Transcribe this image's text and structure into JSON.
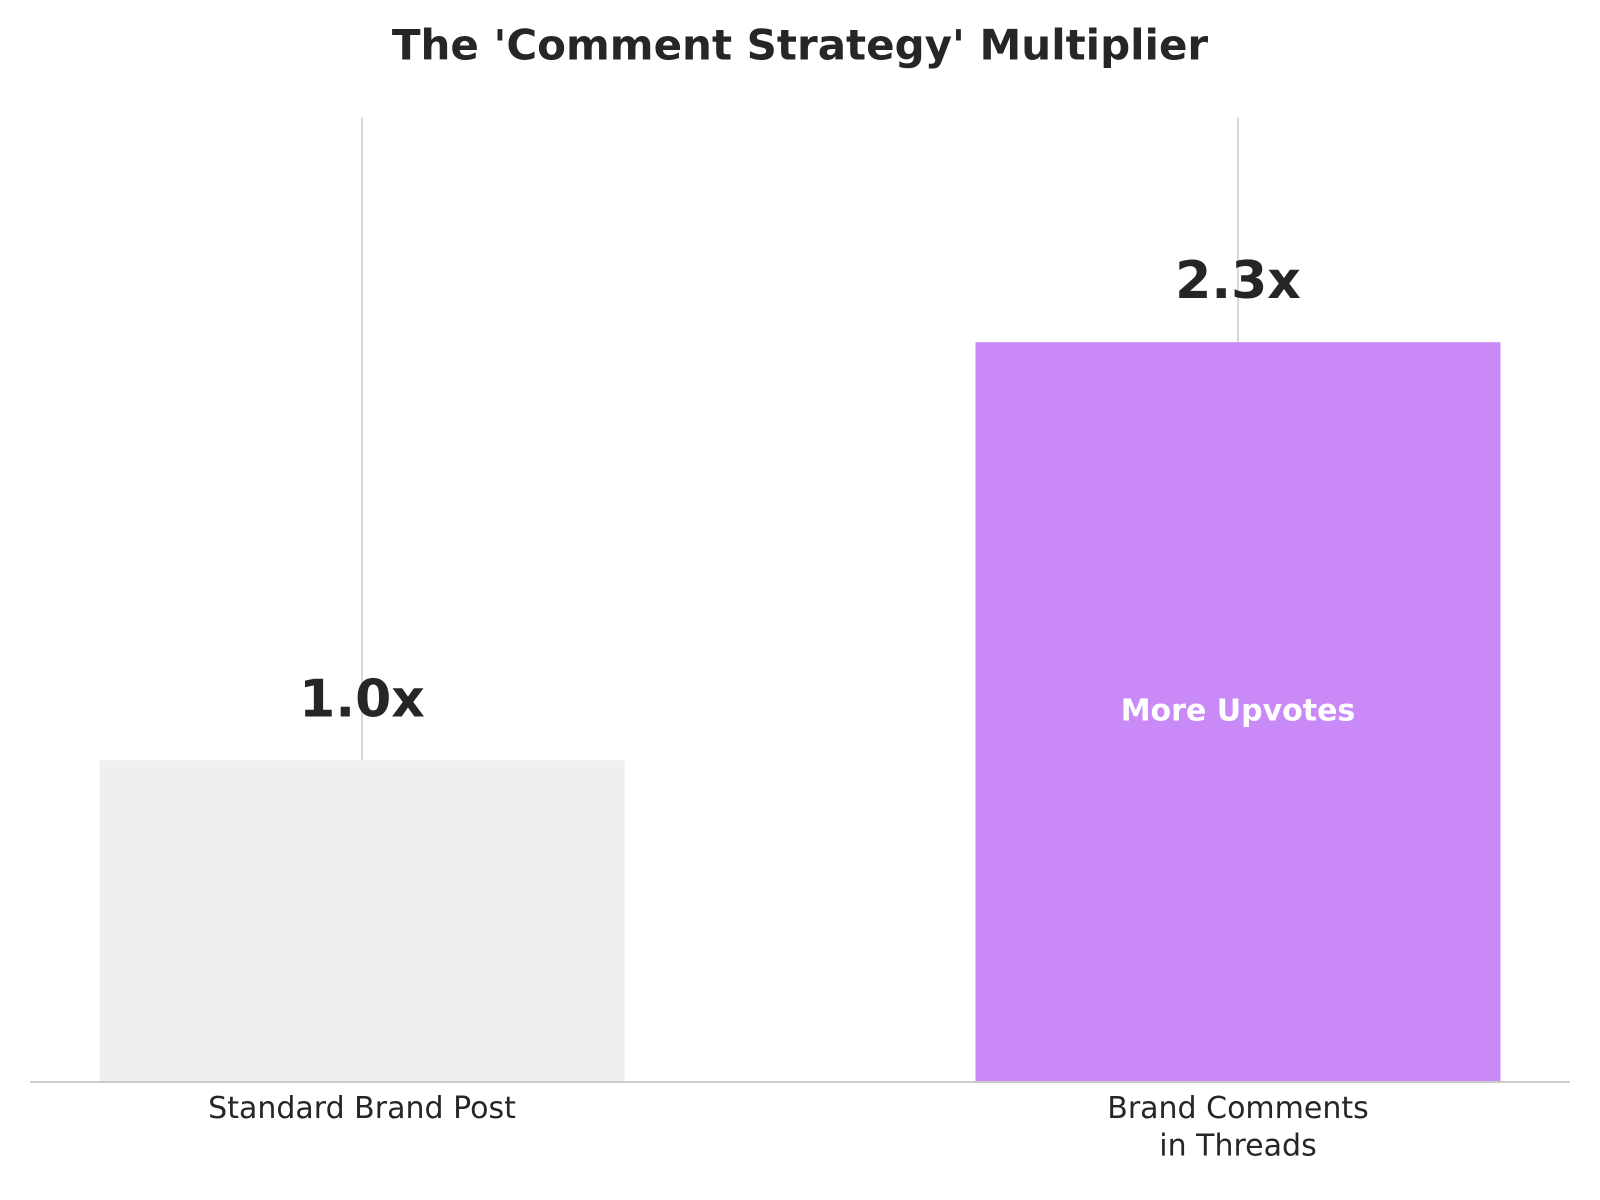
{
  "chart_data": {
    "type": "bar",
    "title": "The 'Comment Strategy' Multiplier",
    "categories": [
      "Standard Brand Post",
      "Brand Comments\nin Threads"
    ],
    "values": [
      1.0,
      2.3
    ],
    "value_labels": [
      "1.0x",
      "2.3x"
    ],
    "colors": [
      "#efefef",
      "#c98af7"
    ],
    "inner_labels": [
      null,
      "More Upvotes"
    ],
    "ylim": [
      0,
      3
    ],
    "grid": true
  }
}
